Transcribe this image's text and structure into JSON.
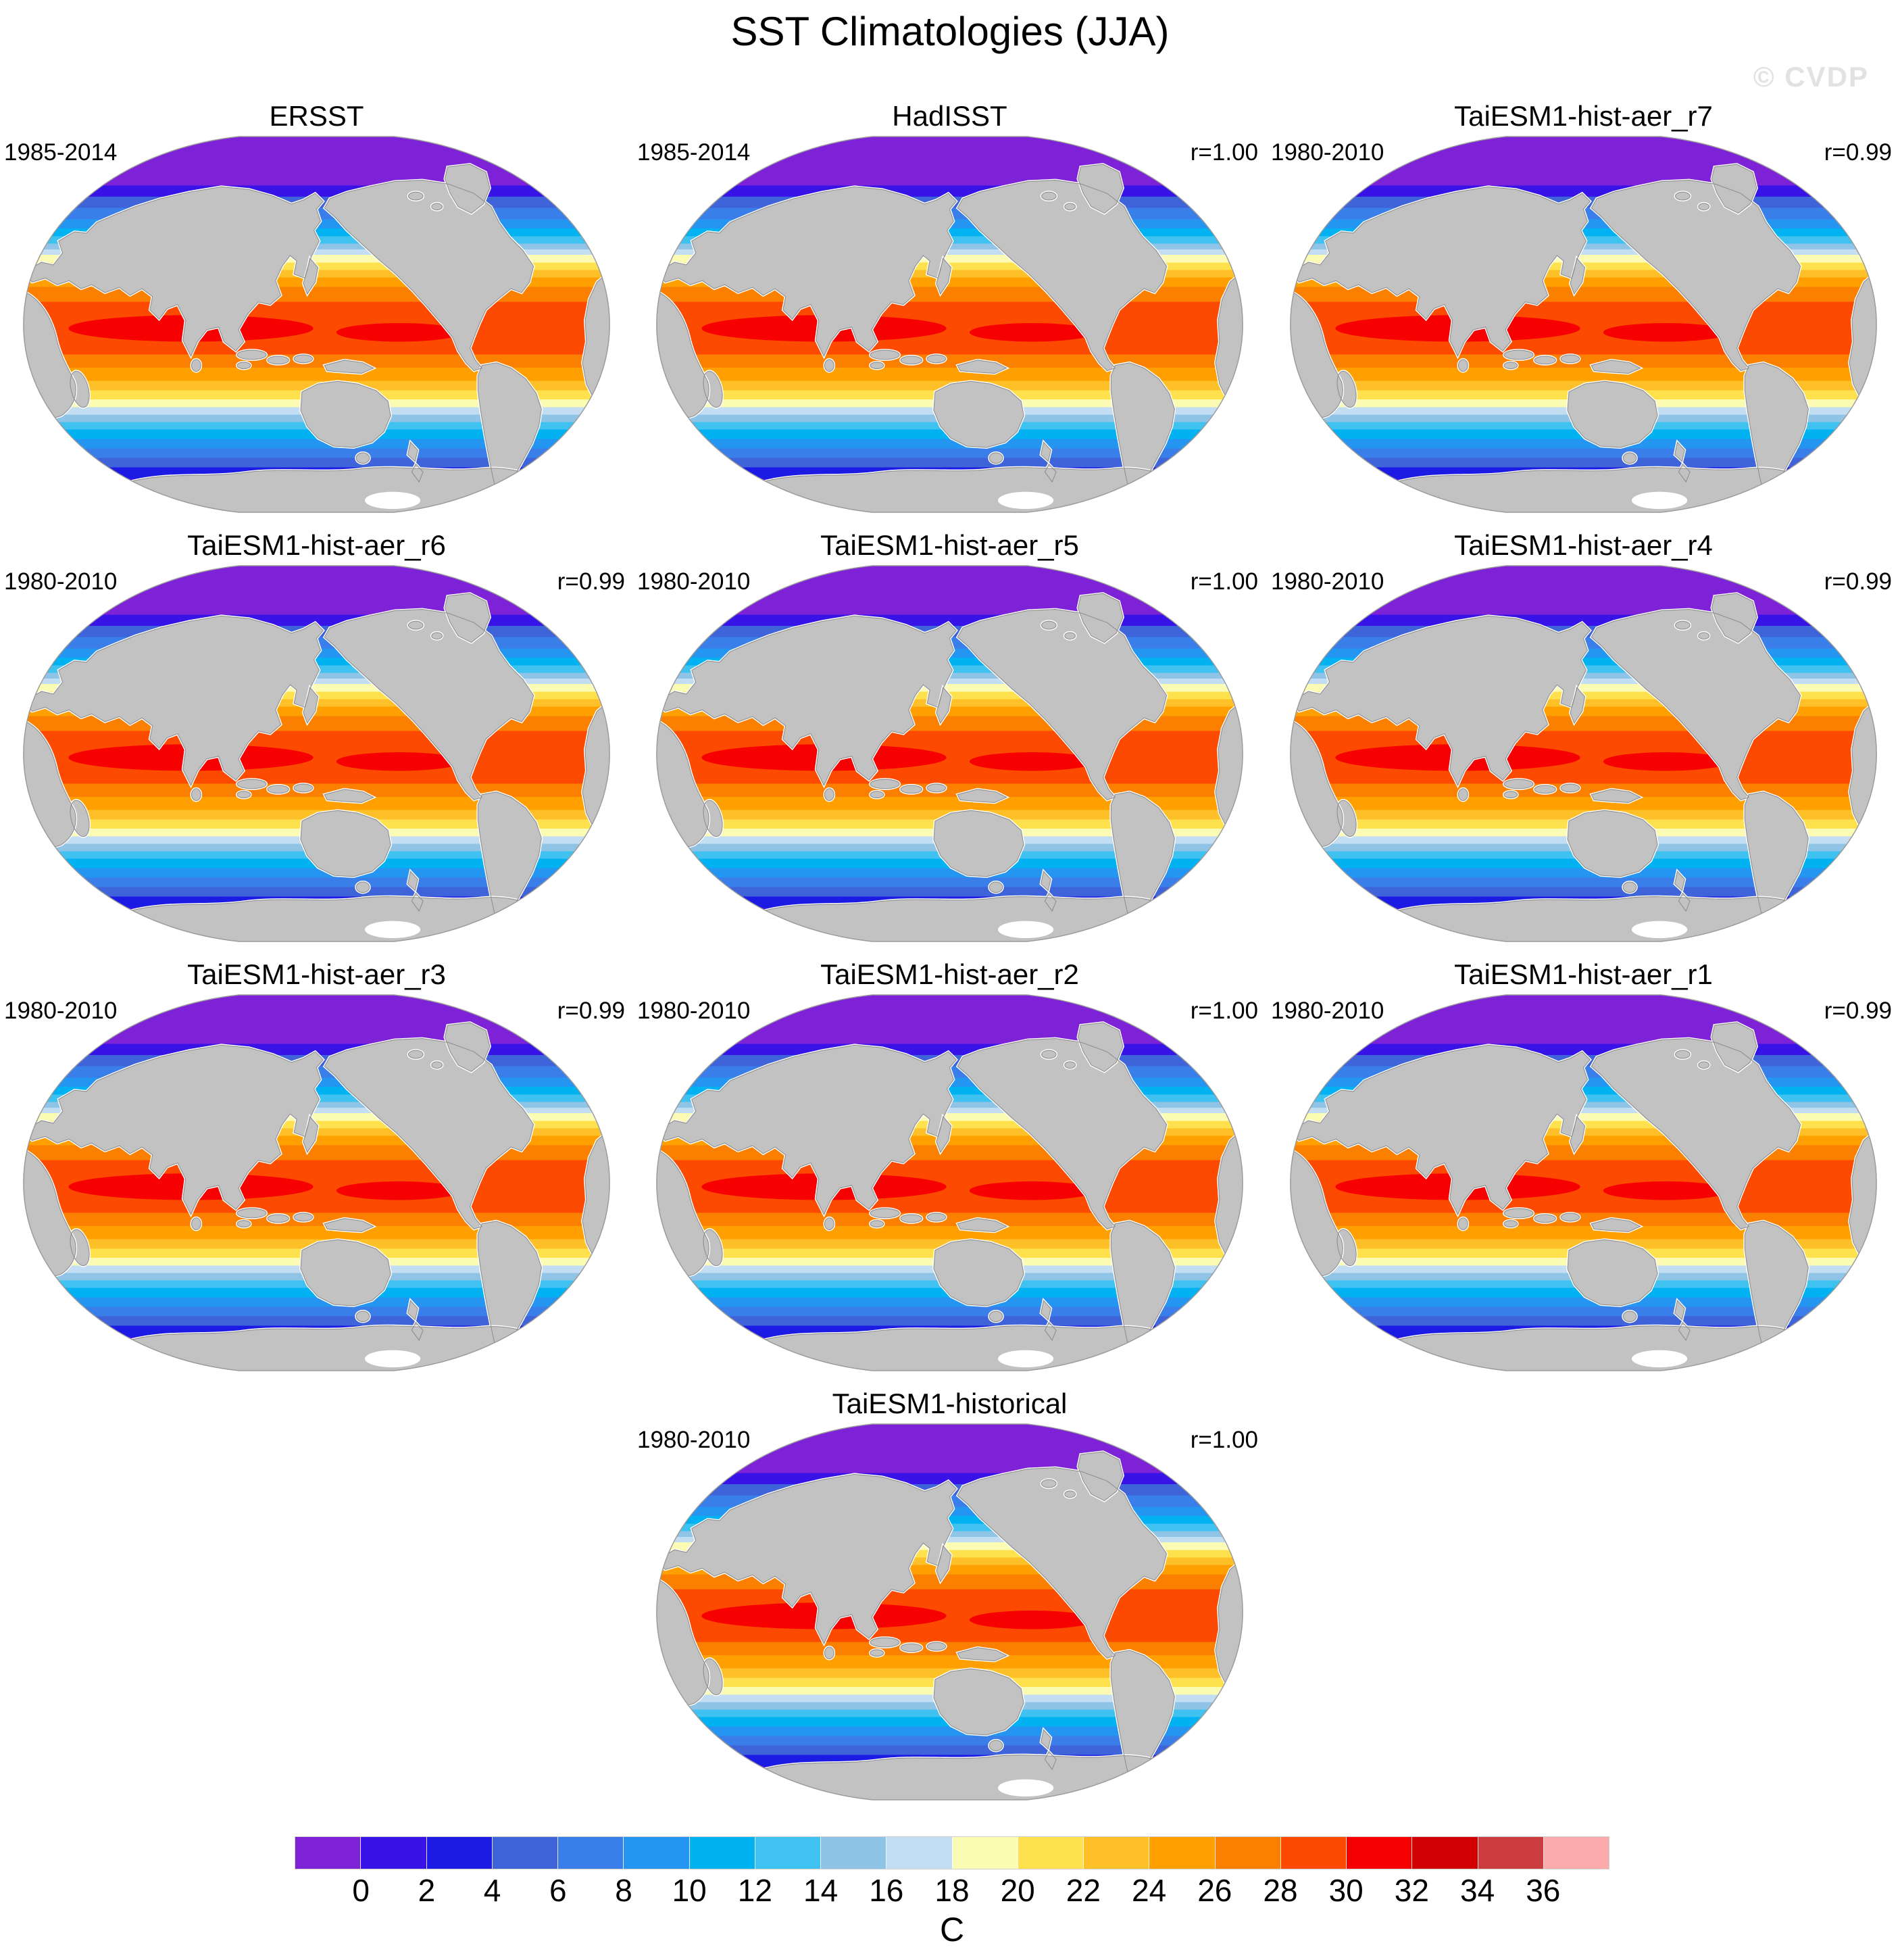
{
  "title": "SST Climatologies (JJA)",
  "watermark": "© CVDP",
  "panels": [
    {
      "title": "ERSST",
      "period": "1985-2014",
      "r": null
    },
    {
      "title": "HadISST",
      "period": "1985-2014",
      "r": "r=1.00"
    },
    {
      "title": "TaiESM1-hist-aer_r7",
      "period": "1980-2010",
      "r": "r=0.99"
    },
    {
      "title": "TaiESM1-hist-aer_r6",
      "period": "1980-2010",
      "r": "r=0.99"
    },
    {
      "title": "TaiESM1-hist-aer_r5",
      "period": "1980-2010",
      "r": "r=1.00"
    },
    {
      "title": "TaiESM1-hist-aer_r4",
      "period": "1980-2010",
      "r": "r=0.99"
    },
    {
      "title": "TaiESM1-hist-aer_r3",
      "period": "1980-2010",
      "r": "r=0.99"
    },
    {
      "title": "TaiESM1-hist-aer_r2",
      "period": "1980-2010",
      "r": "r=1.00"
    },
    {
      "title": "TaiESM1-hist-aer_r1",
      "period": "1980-2010",
      "r": "r=0.99"
    },
    {
      "title": "TaiESM1-historical",
      "period": "1980-2010",
      "r": "r=1.00"
    }
  ],
  "colorbar": {
    "tick_labels": [
      "0",
      "2",
      "4",
      "6",
      "8",
      "10",
      "12",
      "14",
      "16",
      "18",
      "20",
      "22",
      "24",
      "26",
      "28",
      "30",
      "32",
      "34",
      "36"
    ],
    "colors": [
      "#7E22D8",
      "#3813E8",
      "#1B1BE4",
      "#3F63D8",
      "#3A7EEA",
      "#2496F2",
      "#00B2F2",
      "#3FC2EF",
      "#8FC4E6",
      "#C3DEF2",
      "#FBFBB4",
      "#FFE14D",
      "#FDC028",
      "#FF9F00",
      "#FB8000",
      "#FC4A00",
      "#F60002",
      "#D10003",
      "#CB3D3E",
      "#FBABAB"
    ],
    "unit": "C"
  },
  "chart_data": {
    "type": "heatmap",
    "title": "SST Climatologies (JJA)",
    "variable": "Sea surface temperature climatology (filled contours on global maps, Pacific-centered)",
    "season": "JJA",
    "units": "C",
    "colorbar_levels": [
      0,
      2,
      4,
      6,
      8,
      10,
      12,
      14,
      16,
      18,
      20,
      22,
      24,
      26,
      28,
      30,
      32,
      34,
      36
    ],
    "colorbar_colors": [
      "#7E22D8",
      "#3813E8",
      "#1B1BE4",
      "#3F63D8",
      "#3A7EEA",
      "#2496F2",
      "#00B2F2",
      "#3FC2EF",
      "#8FC4E6",
      "#C3DEF2",
      "#FBFBB4",
      "#FFE14D",
      "#FDC028",
      "#FF9F00",
      "#FB8000",
      "#FC4A00",
      "#F60002",
      "#D10003",
      "#CB3D3E",
      "#FBABAB"
    ],
    "legend_position": "bottom",
    "panels": [
      {
        "name": "ERSST",
        "period": "1985-2014",
        "r": null
      },
      {
        "name": "HadISST",
        "period": "1985-2014",
        "r": 1.0
      },
      {
        "name": "TaiESM1-hist-aer_r7",
        "period": "1980-2010",
        "r": 0.99
      },
      {
        "name": "TaiESM1-hist-aer_r6",
        "period": "1980-2010",
        "r": 0.99
      },
      {
        "name": "TaiESM1-hist-aer_r5",
        "period": "1980-2010",
        "r": 1.0
      },
      {
        "name": "TaiESM1-hist-aer_r4",
        "period": "1980-2010",
        "r": 0.99
      },
      {
        "name": "TaiESM1-hist-aer_r3",
        "period": "1980-2010",
        "r": 0.99
      },
      {
        "name": "TaiESM1-hist-aer_r2",
        "period": "1980-2010",
        "r": 1.0
      },
      {
        "name": "TaiESM1-hist-aer_r1",
        "period": "1980-2010",
        "r": 0.99
      },
      {
        "name": "TaiESM1-historical",
        "period": "1980-2010",
        "r": 1.0
      }
    ]
  }
}
